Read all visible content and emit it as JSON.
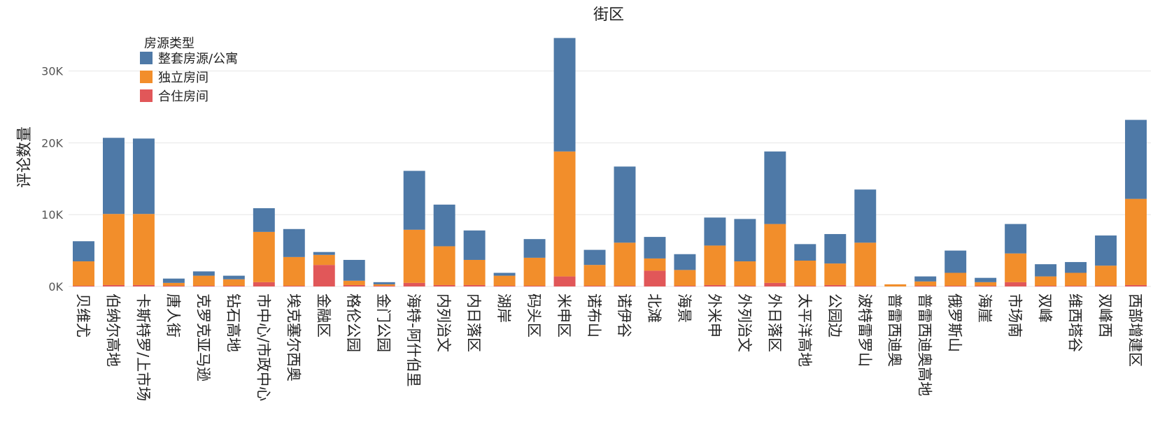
{
  "chart_data": {
    "type": "bar",
    "stacked": true,
    "title": "街区",
    "xlabel": "",
    "ylabel": "评论数量",
    "ylim": [
      0,
      36000
    ],
    "yticks": [
      0,
      10000,
      20000,
      30000
    ],
    "ytick_labels": [
      "0K",
      "10K",
      "20K",
      "30K"
    ],
    "grid": true,
    "legend": {
      "title": "房源类型",
      "position": "top-left"
    },
    "categories": [
      "贝维尤",
      "伯纳尔高地",
      "卡斯特罗/上市场",
      "唐人街",
      "克罗克亚马逊",
      "钻石高地",
      "市中心/市政中心",
      "埃克塞尔西奥",
      "金融区",
      "格伦公园",
      "金门公园",
      "海特-阿什伯里",
      "内列治文",
      "内日落区",
      "湖岸",
      "码头区",
      "米申区",
      "诺布山",
      "诺伊谷",
      "北滩",
      "海景",
      "外米申",
      "外列治文",
      "外日落区",
      "太平洋高地",
      "公园边",
      "波特雷罗山",
      "普雷西迪奥",
      "普雷西迪奥高地",
      "俄罗斯山",
      "海崖",
      "市场南",
      "双峰",
      "维西塔谷",
      "双峰西",
      "西部增建区"
    ],
    "series": [
      {
        "name": "合住房间",
        "color": "#e15759",
        "values": [
          100,
          200,
          200,
          100,
          100,
          100,
          600,
          100,
          3000,
          200,
          100,
          500,
          200,
          200,
          100,
          100,
          1400,
          100,
          100,
          2200,
          100,
          200,
          100,
          500,
          100,
          200,
          100,
          0,
          100,
          100,
          100,
          600,
          100,
          100,
          100,
          200
        ]
      },
      {
        "name": "独立房间",
        "color": "#f28e2b",
        "values": [
          3400,
          9900,
          9900,
          400,
          1400,
          900,
          7000,
          4000,
          1400,
          600,
          200,
          7400,
          5400,
          3500,
          1400,
          3900,
          17400,
          2900,
          6000,
          1700,
          2200,
          5500,
          3400,
          8200,
          3500,
          3000,
          6000,
          300,
          600,
          1800,
          500,
          4000,
          1300,
          1800,
          2800,
          12000
        ]
      },
      {
        "name": "整套房源/公寓",
        "color": "#4e79a7",
        "values": [
          2800,
          10600,
          10500,
          600,
          600,
          500,
          3300,
          3900,
          400,
          2900,
          300,
          8200,
          5800,
          4100,
          400,
          2600,
          15800,
          2100,
          10600,
          3000,
          2200,
          3900,
          5900,
          10100,
          2300,
          4100,
          7400,
          0,
          700,
          3100,
          600,
          4100,
          1700,
          1500,
          4200,
          11000
        ]
      }
    ]
  }
}
